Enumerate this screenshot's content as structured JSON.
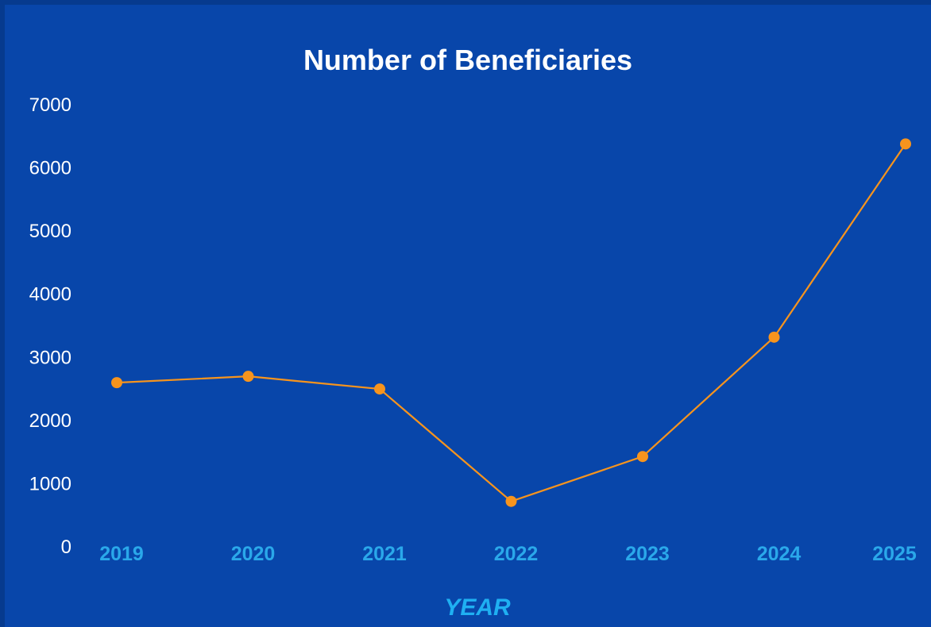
{
  "colors": {
    "background": "#0846aa",
    "border": "#063a8e",
    "title": "#ffffff",
    "y_tick": "#ffffff",
    "x_tick": "#2aa8ea",
    "x_label": "#1fb0f2",
    "line": "#f7941d",
    "marker": "#f7941d"
  },
  "chart_data": {
    "type": "line",
    "title": "Number of Beneficiaries",
    "xlabel": "YEAR",
    "ylabel": "",
    "categories": [
      "2019",
      "2020",
      "2021",
      "2022",
      "2023",
      "2024",
      "2025"
    ],
    "series": [
      {
        "values": [
          2600,
          2700,
          2500,
          720,
          1430,
          3320,
          6380
        ]
      }
    ],
    "ylim": [
      0,
      7000
    ],
    "yticks": [
      0,
      1000,
      2000,
      3000,
      4000,
      5000,
      6000,
      7000
    ],
    "grid": false,
    "legend": "none"
  }
}
